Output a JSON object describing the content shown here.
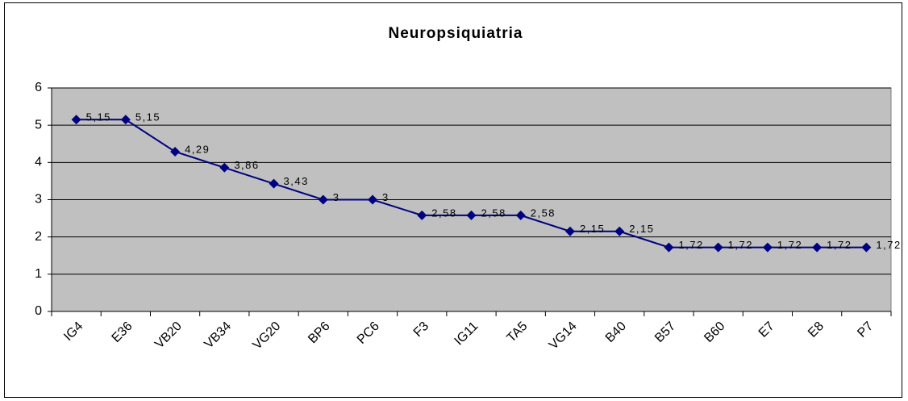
{
  "chart_data": {
    "type": "line",
    "title": "Neuropsiquiatria",
    "categories": [
      "IG4",
      "E36",
      "VB20",
      "VB34",
      "VG20",
      "BP6",
      "PC6",
      "F3",
      "IG11",
      "TA5",
      "VG14",
      "B40",
      "B57",
      "B60",
      "E7",
      "E8",
      "P7"
    ],
    "values": [
      5.15,
      5.15,
      4.29,
      3.86,
      3.43,
      3,
      3,
      2.58,
      2.58,
      2.58,
      2.15,
      2.15,
      1.72,
      1.72,
      1.72,
      1.72,
      1.72
    ],
    "value_labels": [
      "5,15",
      "5,15",
      "4,29",
      "3,86",
      "3,43",
      "3",
      "3",
      "2,58",
      "2,58",
      "2,58",
      "2,15",
      "2,15",
      "1,72",
      "1,72",
      "1,72",
      "1,72",
      "1,72"
    ],
    "color": "#000080",
    "plot_background": "#c0c0c0",
    "ylim": [
      0,
      6
    ],
    "yticks": [
      0,
      1,
      2,
      3,
      4,
      5,
      6
    ],
    "grid": true
  }
}
